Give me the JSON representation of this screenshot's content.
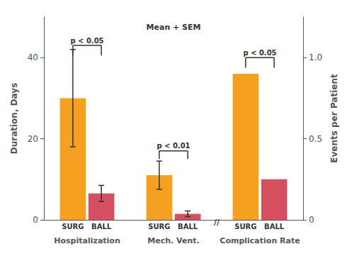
{
  "chart_data": {
    "type": "bar",
    "categories": [
      "Hospitalization",
      "Mech. Vent.",
      "Complication Rate"
    ],
    "series": [
      {
        "name": "SURG",
        "color": "#f5a020",
        "values": [
          30,
          11,
          36
        ],
        "errors": [
          12,
          3.5,
          0.0
        ]
      },
      {
        "name": "BALL",
        "color": "#d45060",
        "values": [
          6.5,
          1.5,
          10
        ],
        "errors": [
          2.0,
          0.7,
          0.0
        ]
      }
    ],
    "ylabel": "Duration, Days",
    "y2label": "Events per Patient",
    "ylim": [
      0,
      50
    ],
    "yticks": [
      0,
      20,
      40
    ],
    "y2lim": [
      0,
      1.25
    ],
    "y2ticks": [
      0,
      0.5,
      {
        "value": 1.0,
        "label": "1.0"
      }
    ],
    "grid": false,
    "brackets": [
      {
        "category": "Hospitalization",
        "label": "p < 0.05",
        "y": 43,
        "drop": 2.5
      },
      {
        "category": "Mech. Vent.",
        "label": "p < 0.01",
        "y": 17,
        "drop": 2.0
      },
      {
        "category": "Complication Rate",
        "label": "p < 0.05",
        "y": 40,
        "drop": 2.5
      }
    ],
    "annotations": [
      {
        "text": "Mean + SEM",
        "category": "Mech. Vent.",
        "y": 47.5
      },
      {
        "text": "//",
        "between": [
          "Mech. Vent.",
          "Complication Rate"
        ],
        "y": -1.5
      }
    ]
  }
}
